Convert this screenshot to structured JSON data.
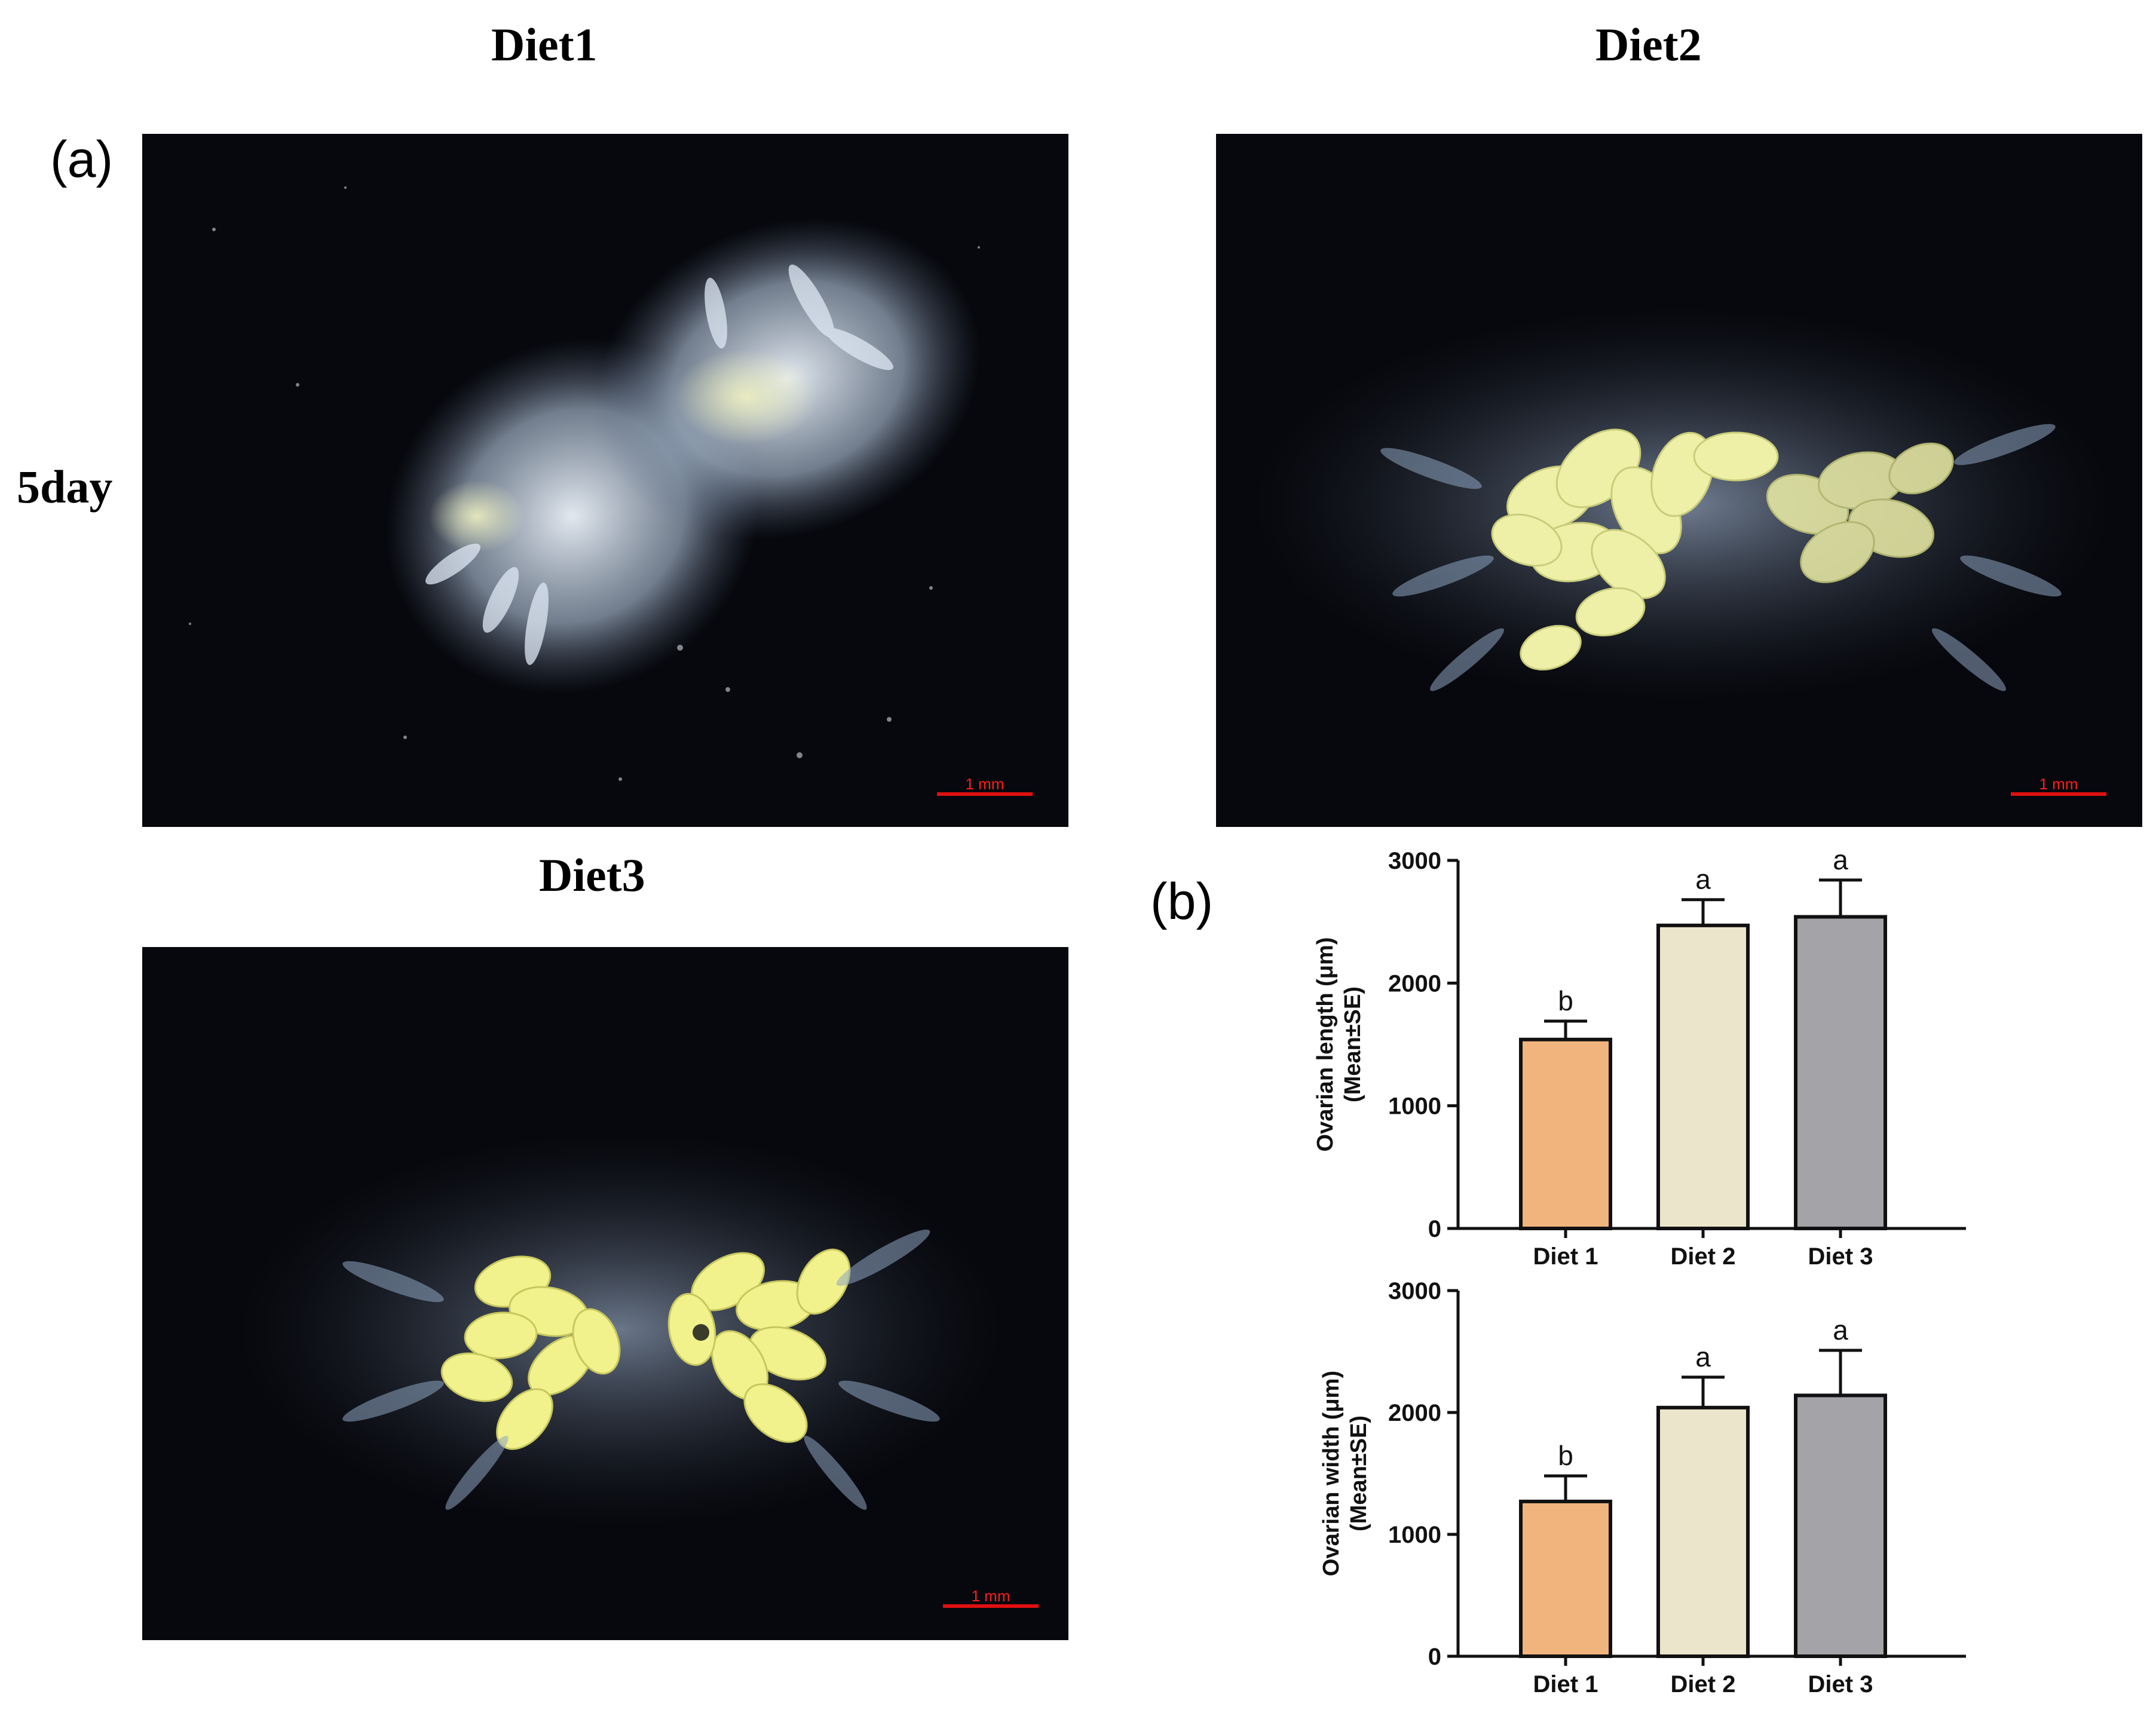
{
  "panel_a": {
    "label": "(a)",
    "row_label": "5day",
    "images": [
      {
        "title": "Diet1",
        "scale_bar": "1 mm",
        "tissue_color": "#cfe0f2",
        "egg_color": "#e8eec0",
        "description_icon": "micrograph-ovary-icon"
      },
      {
        "title": "Diet2",
        "scale_bar": "1 mm",
        "tissue_color": "#9fb2cc",
        "egg_color": "#eef0a8",
        "description_icon": "micrograph-ovary-icon"
      },
      {
        "title": "Diet3",
        "scale_bar": "1 mm",
        "tissue_color": "#9fb2cc",
        "egg_color": "#f2f28c",
        "description_icon": "micrograph-ovary-icon"
      }
    ]
  },
  "panel_b": {
    "label": "(b)"
  },
  "chart_data": [
    {
      "type": "bar",
      "categories": [
        "Diet 1",
        "Diet 2",
        "Diet 3"
      ],
      "values": [
        1540,
        2470,
        2540
      ],
      "error": [
        150,
        210,
        300
      ],
      "significance": [
        "b",
        "a",
        "a"
      ],
      "ylabel_line1": "Ovarian length (μm)",
      "ylabel_line2": "(Mean±SE)",
      "ylim": [
        0,
        3000
      ],
      "yticks": [
        "0",
        "1000",
        "2000",
        "3000"
      ],
      "bar_colors": [
        "#f1b47c",
        "#ebe6cb",
        "#a3a3a8"
      ],
      "grid": false
    },
    {
      "type": "bar",
      "categories": [
        "Diet 1",
        "Diet 2",
        "Diet 3"
      ],
      "values": [
        1270,
        2040,
        2140
      ],
      "error": [
        210,
        250,
        370
      ],
      "significance": [
        "b",
        "a",
        "a"
      ],
      "ylabel_line1": "Ovarian width (μm)",
      "ylabel_line2": "(Mean±SE)",
      "ylim": [
        0,
        3000
      ],
      "yticks": [
        "0",
        "1000",
        "2000",
        "3000"
      ],
      "bar_colors": [
        "#f1b47c",
        "#ebe6cb",
        "#a3a3a8"
      ],
      "grid": false
    }
  ]
}
